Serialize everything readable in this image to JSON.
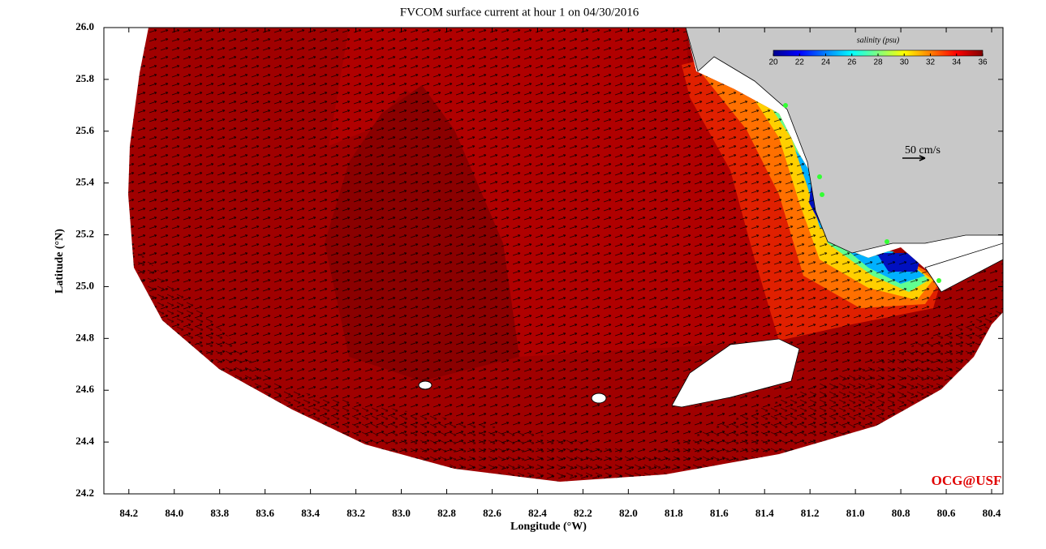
{
  "chart_data": {
    "type": "map",
    "title": "FVCOM surface current at hour 1 on 04/30/2016",
    "x_label": "Longitude (°W)",
    "y_label": "Latitude (°N)",
    "xlim": [
      84.31,
      80.35
    ],
    "ylim": [
      24.2,
      26.0
    ],
    "xticks": [
      84.2,
      {
        "value": 84.0,
        "label": "84.0"
      },
      83.8,
      83.6,
      83.4,
      83.2,
      {
        "value": 83.0,
        "label": "83.0"
      },
      82.8,
      82.6,
      82.4,
      82.2,
      {
        "value": 82.0,
        "label": "82.0"
      },
      81.8,
      81.6,
      81.4,
      81.2,
      {
        "value": 81.0,
        "label": "81.0"
      },
      80.8,
      80.6,
      80.4
    ],
    "yticks": [
      24.2,
      24.4,
      24.6,
      24.8,
      {
        "value": 25.0,
        "label": "25.0"
      },
      25.2,
      25.4,
      25.6,
      25.8,
      {
        "value": 26.0,
        "label": "26.0"
      }
    ],
    "colorbar": {
      "label": "salinity (psu)",
      "lim": [
        20,
        36
      ],
      "ticks": [
        20,
        22,
        24,
        26,
        28,
        30,
        32,
        34,
        36
      ],
      "colormap": "jet"
    },
    "scale_label": "50 cm/s",
    "credit": "OCG@USF"
  }
}
